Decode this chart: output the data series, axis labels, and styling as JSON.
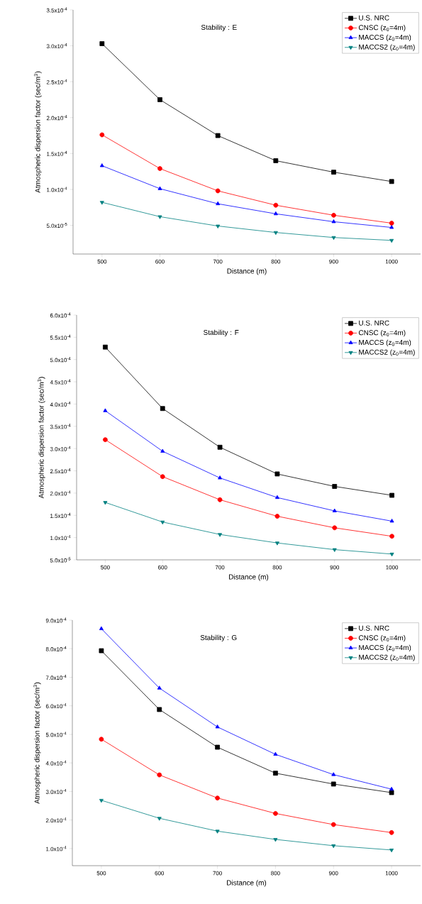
{
  "chart_data": [
    {
      "type": "line",
      "annotations": [
        "Stability : E"
      ],
      "xlabel": "Distance (m)",
      "ylabel": "Atmospheric dispersion factor (sec/m$^{3}$)",
      "x": [
        500,
        600,
        700,
        800,
        900,
        1000
      ],
      "xlim": [
        450,
        1050
      ],
      "xticks": [
        500,
        600,
        700,
        800,
        900,
        1000
      ],
      "ylim": [
        1e-05,
        0.00035
      ],
      "yticks": [
        {
          "value": 5e-05,
          "label": "5.0x10$^{-5}$"
        },
        {
          "value": 0.0001,
          "label": "1.0x10$^{-4}$"
        },
        {
          "value": 0.00015,
          "label": "1.5x10$^{-4}$"
        },
        {
          "value": 0.0002,
          "label": "2.0x10$^{-4}$"
        },
        {
          "value": 0.00025,
          "label": "2.5x10$^{-4}$"
        },
        {
          "value": 0.0003,
          "label": "3.0x10$^{-4}$"
        },
        {
          "value": 0.00035,
          "label": "3.5x10$^{-4}$"
        }
      ],
      "legend": "top right",
      "series": [
        {
          "name": "U.S. NRC",
          "color": "#000000",
          "marker": "square",
          "values": [
            0.000303,
            0.000225,
            0.000175,
            0.00014,
            0.000124,
            0.000111
          ]
        },
        {
          "name": "CNSC (z$_{0}$=4m)",
          "color": "#ff0000",
          "marker": "circle",
          "values": [
            0.000176,
            0.000129,
            9.8e-05,
            7.8e-05,
            6.4e-05,
            5.3e-05
          ]
        },
        {
          "name": "MACCS (z$_{0}$=4m)",
          "color": "#0000ff",
          "marker": "triangle",
          "values": [
            0.000133,
            0.000101,
            8e-05,
            6.6e-05,
            5.5e-05,
            4.7e-05
          ]
        },
        {
          "name": "MACCS2 (z$_{0}$=4m)",
          "color": "#008080",
          "marker": "triangle-down",
          "values": [
            8.2e-05,
            6.2e-05,
            4.9e-05,
            4e-05,
            3.3e-05,
            2.9e-05
          ]
        }
      ]
    },
    {
      "type": "line",
      "annotations": [
        "Stability : F"
      ],
      "xlabel": "Distance (m)",
      "ylabel": "Atmospheric dispersion factor (sec/m$^{3}$)",
      "x": [
        500,
        600,
        700,
        800,
        900,
        1000
      ],
      "xlim": [
        450,
        1050
      ],
      "xticks": [
        500,
        600,
        700,
        800,
        900,
        1000
      ],
      "ylim": [
        5e-05,
        0.0006
      ],
      "yticks": [
        {
          "value": 5e-05,
          "label": "5.0x10$^{-5}$"
        },
        {
          "value": 0.0001,
          "label": "1.0x10$^{-4}$"
        },
        {
          "value": 0.00015,
          "label": "1.5x10$^{-4}$"
        },
        {
          "value": 0.0002,
          "label": "2.0x10$^{-4}$"
        },
        {
          "value": 0.00025,
          "label": "2.5x10$^{-4}$"
        },
        {
          "value": 0.0003,
          "label": "3.0x10$^{-4}$"
        },
        {
          "value": 0.00035,
          "label": "3.5x10$^{-4}$"
        },
        {
          "value": 0.0004,
          "label": "4.0x10$^{-4}$"
        },
        {
          "value": 0.00045,
          "label": "4.5x10$^{-4}$"
        },
        {
          "value": 0.0005,
          "label": "5.0x10$^{-4}$"
        },
        {
          "value": 0.00055,
          "label": "5.5x10$^{-4}$"
        },
        {
          "value": 0.0006,
          "label": "6.0x10$^{-4}$"
        }
      ],
      "legend": "top right",
      "series": [
        {
          "name": "U.S. NRC",
          "color": "#000000",
          "marker": "square",
          "values": [
            0.000528,
            0.00039,
            0.000303,
            0.000243,
            0.000215,
            0.000195
          ]
        },
        {
          "name": "CNSC (z$_{0}$=4m)",
          "color": "#ff0000",
          "marker": "circle",
          "values": [
            0.00032,
            0.000237,
            0.000185,
            0.000148,
            0.000122,
            0.000103
          ]
        },
        {
          "name": "MACCS (z$_{0}$=4m)",
          "color": "#0000ff",
          "marker": "triangle",
          "values": [
            0.000385,
            0.000294,
            0.000234,
            0.00019,
            0.00016,
            0.000137
          ]
        },
        {
          "name": "MACCS2 (z$_{0}$=4m)",
          "color": "#008080",
          "marker": "triangle-down",
          "values": [
            0.000179,
            0.000135,
            0.000107,
            8.8e-05,
            7.3e-05,
            6.3e-05
          ]
        }
      ]
    },
    {
      "type": "line",
      "annotations": [
        "Stability : G"
      ],
      "xlabel": "Distance (m)",
      "ylabel": "Atmospheric dispersion factor (sec/m$^{3}$)",
      "x": [
        500,
        600,
        700,
        800,
        900,
        1000
      ],
      "xlim": [
        450,
        1050
      ],
      "xticks": [
        500,
        600,
        700,
        800,
        900,
        1000
      ],
      "ylim": [
        4e-05,
        0.0009
      ],
      "yticks": [
        {
          "value": 0.0001,
          "label": "1.0x10$^{-4}$"
        },
        {
          "value": 0.0002,
          "label": "2.0x10$^{-4}$"
        },
        {
          "value": 0.0003,
          "label": "3.0x10$^{-4}$"
        },
        {
          "value": 0.0004,
          "label": "4.0x10$^{-4}$"
        },
        {
          "value": 0.0005,
          "label": "5.0x10$^{-4}$"
        },
        {
          "value": 0.0006,
          "label": "6.0x10$^{-4}$"
        },
        {
          "value": 0.0007,
          "label": "7.0x10$^{-4}$"
        },
        {
          "value": 0.0008,
          "label": "8.0x10$^{-4}$"
        },
        {
          "value": 0.0009,
          "label": "9.0x10$^{-4}$"
        }
      ],
      "legend": "top right",
      "series": [
        {
          "name": "U.S. NRC",
          "color": "#000000",
          "marker": "square",
          "values": [
            0.000793,
            0.000587,
            0.000455,
            0.000364,
            0.000326,
            0.000296
          ]
        },
        {
          "name": "CNSC (z$_{0}$=4m)",
          "color": "#ff0000",
          "marker": "circle",
          "values": [
            0.000483,
            0.000358,
            0.000277,
            0.000223,
            0.000184,
            0.000156
          ]
        },
        {
          "name": "MACCS (z$_{0}$=4m)",
          "color": "#0000ff",
          "marker": "triangle",
          "values": [
            0.00087,
            0.000662,
            0.000526,
            0.00043,
            0.000359,
            0.000308
          ]
        },
        {
          "name": "MACCS2 (z$_{0}$=4m)",
          "color": "#008080",
          "marker": "triangle-down",
          "values": [
            0.000269,
            0.000206,
            0.000161,
            0.000132,
            0.00011,
            9.5e-05
          ]
        }
      ]
    }
  ]
}
